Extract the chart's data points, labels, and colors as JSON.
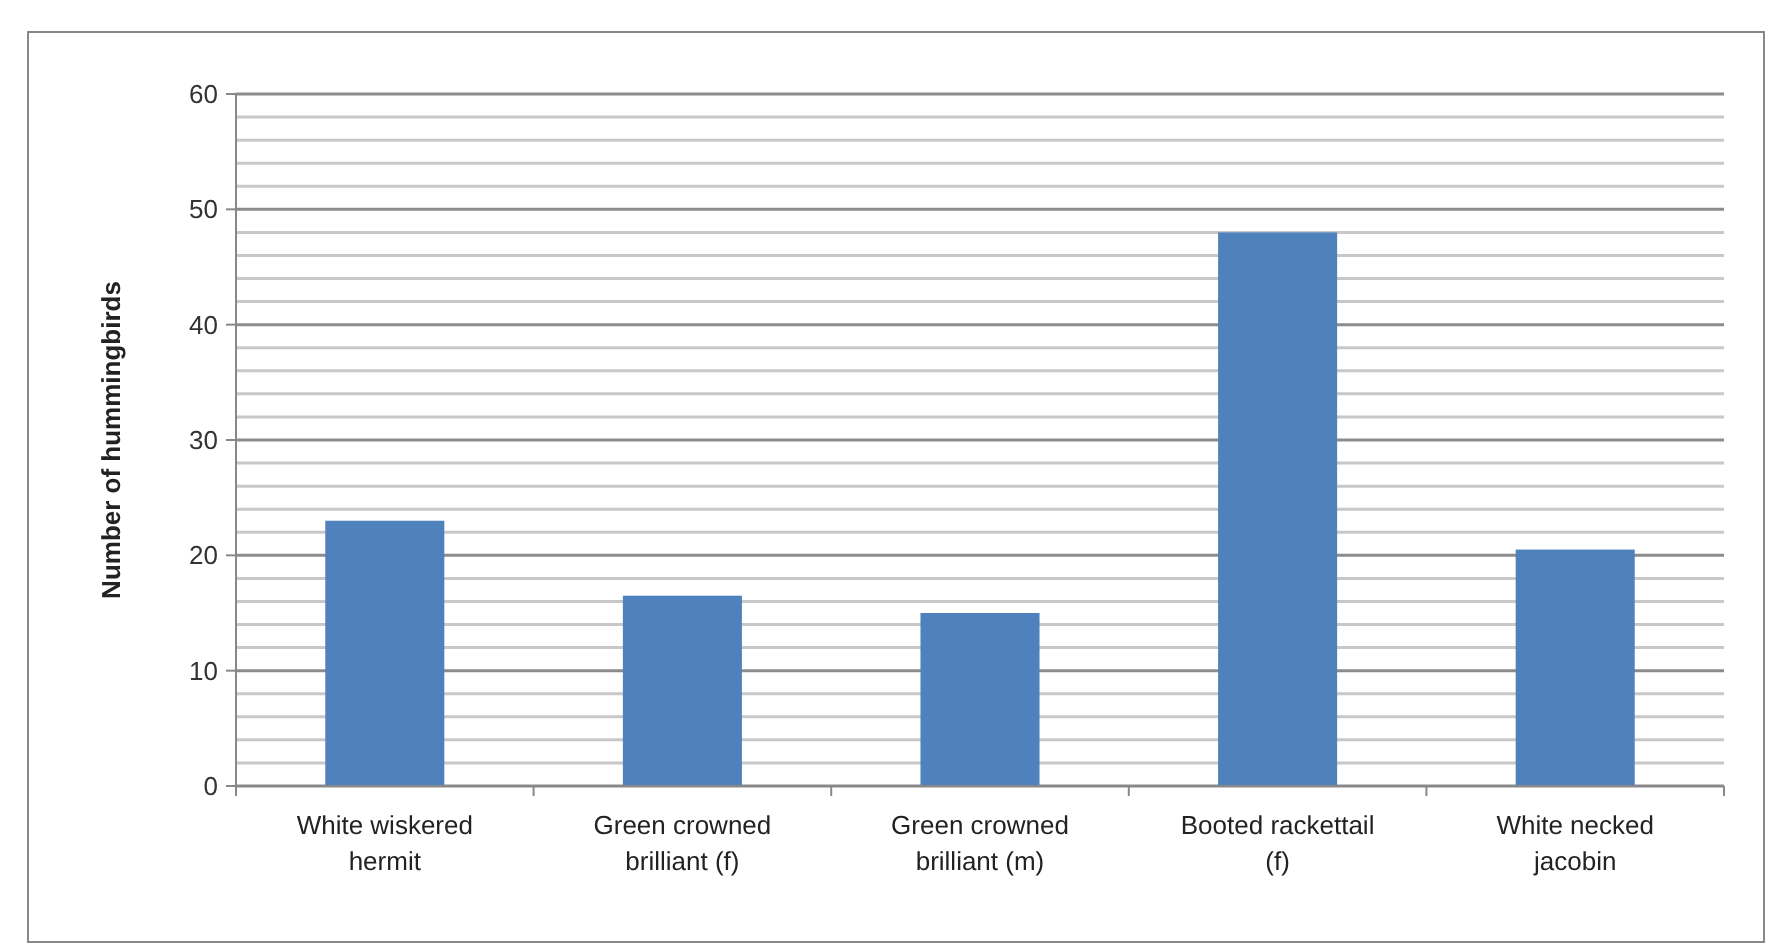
{
  "chart_data": {
    "type": "bar",
    "ylabel": "Number of hummingbirds",
    "categories": [
      "White wiskered hermit",
      "Green crowned brilliant (f)",
      "Green crowned brilliant (m)",
      "Booted rackettail (f)",
      "White necked jacobin"
    ],
    "values": [
      23,
      16.5,
      15,
      48,
      20.5
    ],
    "color": "#4f81bd",
    "ylim": [
      0,
      60
    ],
    "yticks": [
      0,
      {
        "value": 2,
        "label": null
      },
      {
        "value": 4,
        "label": null
      },
      {
        "value": 6,
        "label": null
      },
      {
        "value": 8,
        "label": null
      },
      10,
      {
        "value": 12,
        "label": null
      },
      {
        "value": 14,
        "label": null
      },
      {
        "value": 16,
        "label": null
      },
      {
        "value": 18,
        "label": null
      },
      20,
      {
        "value": 22,
        "label": null
      },
      {
        "value": 24,
        "label": null
      },
      {
        "value": 26,
        "label": null
      },
      {
        "value": 28,
        "label": null
      },
      30,
      {
        "value": 32,
        "label": null
      },
      {
        "value": 34,
        "label": null
      },
      {
        "value": 36,
        "label": null
      },
      {
        "value": 38,
        "label": null
      },
      40,
      {
        "value": 42,
        "label": null
      },
      {
        "value": 44,
        "label": null
      },
      {
        "value": 46,
        "label": null
      },
      {
        "value": 48,
        "label": null
      },
      50,
      {
        "value": 52,
        "label": null
      },
      {
        "value": 54,
        "label": null
      },
      {
        "value": 56,
        "label": null
      },
      {
        "value": 58,
        "label": null
      },
      60
    ],
    "grid": true
  }
}
